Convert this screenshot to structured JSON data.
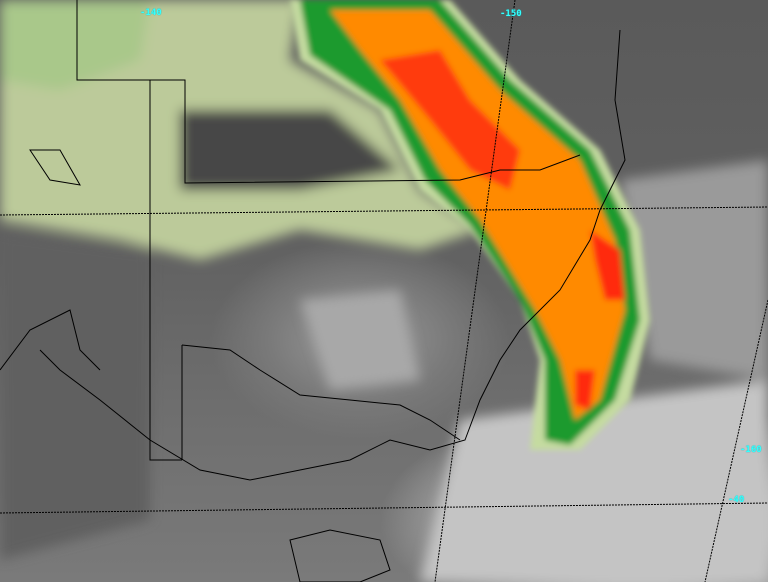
{
  "image": {
    "type": "satellite-infrared-enhanced",
    "colors": {
      "cold_tops": "#ff2a10",
      "very_cold": "#ff8a00",
      "cold": "#1a9a2a",
      "cool": "#a8cf8a",
      "warm": "#d8dcb0",
      "clear": "#5a5a5a",
      "low_cloud": "#c8c8c8",
      "grid": "#000000",
      "labels": "#33ffff"
    }
  },
  "grid_labels": {
    "lon_140": "-140",
    "lon_150": "-150",
    "lon_160": "-160",
    "lat_40": "-40"
  }
}
